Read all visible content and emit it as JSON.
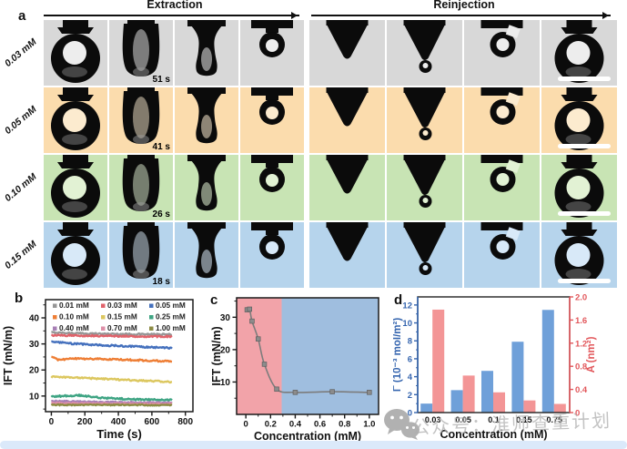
{
  "figure": {
    "background": "#ffffff",
    "bottom_strip_color": "#DBE9FA"
  },
  "panel_a": {
    "label": "a",
    "phases": [
      {
        "label": "Extraction"
      },
      {
        "label": "Reinjection"
      }
    ],
    "columns": [
      "ring",
      "ushape",
      "funnel",
      "loop",
      "cone",
      "cone_ball",
      "hook",
      "ring"
    ],
    "rows": [
      {
        "label": "0.03 mM",
        "time": "51 s",
        "bg": "#D8D8D8",
        "hole": "#EDEDED"
      },
      {
        "label": "0.05 mM",
        "time": "41 s",
        "bg": "#FBDCAD",
        "hole": "#FCEBCF"
      },
      {
        "label": "0.10 mM",
        "time": "26 s",
        "bg": "#C8E4B4",
        "hole": "#E2F2D4"
      },
      {
        "label": "0.15 mM",
        "time": "18 s",
        "bg": "#B6D4EC",
        "hole": "#D8E9F8"
      }
    ],
    "scale_bar_color": "#FFFFFF"
  },
  "panel_b": {
    "label": "b"
  },
  "panel_c": {
    "label": "c"
  },
  "panel_d": {
    "label": "d"
  },
  "watermark": {
    "icon": "wechat-icon",
    "text": "公众号：淮师查重计划"
  },
  "chart_data": [
    {
      "id": "b",
      "type": "line",
      "xlabel": "Time (s)",
      "ylabel": "IFT (mN/m)",
      "xlim": [
        -35,
        845
      ],
      "ylim": [
        4,
        47
      ],
      "xticks": [
        0,
        200,
        400,
        600,
        800
      ],
      "yticks": [
        10,
        20,
        30,
        40
      ],
      "legend_position": "top-inside",
      "series": [
        {
          "name": "0.01 mM",
          "color": "#969696",
          "noise": 0.28,
          "points": [
            [
              0,
              34.4
            ],
            [
              200,
              34.0
            ],
            [
              400,
              33.8
            ],
            [
              720,
              33.6
            ]
          ]
        },
        {
          "name": "0.03 mM",
          "color": "#E0636B",
          "noise": 0.3,
          "points": [
            [
              0,
              33.3
            ],
            [
              150,
              33.2
            ],
            [
              400,
              33.0
            ],
            [
              720,
              32.8
            ]
          ]
        },
        {
          "name": "0.05 mM",
          "color": "#4470BD",
          "noise": 0.3,
          "points": [
            [
              0,
              30.9
            ],
            [
              100,
              30.2
            ],
            [
              300,
              29.5
            ],
            [
              500,
              29.0
            ],
            [
              720,
              28.4
            ]
          ]
        },
        {
          "name": "0.10 mM",
          "color": "#EE7E35",
          "noise": 0.3,
          "points": [
            [
              0,
              25.1
            ],
            [
              40,
              23.8
            ],
            [
              120,
              24.4
            ],
            [
              300,
              24.2
            ],
            [
              500,
              23.8
            ],
            [
              720,
              23.3
            ]
          ]
        },
        {
          "name": "0.15 mM",
          "color": "#DCC75F",
          "noise": 0.3,
          "points": [
            [
              0,
              17.3
            ],
            [
              150,
              17.1
            ],
            [
              300,
              16.6
            ],
            [
              500,
              16.0
            ],
            [
              720,
              15.4
            ]
          ]
        },
        {
          "name": "0.25 mM",
          "color": "#3EA483",
          "noise": 0.3,
          "points": [
            [
              0,
              9.8
            ],
            [
              100,
              10.1
            ],
            [
              160,
              10.3
            ],
            [
              300,
              9.3
            ],
            [
              500,
              8.7
            ],
            [
              720,
              8.5
            ]
          ]
        },
        {
          "name": "0.40 mM",
          "color": "#A77FB5",
          "noise": 0.25,
          "points": [
            [
              0,
              8.1
            ],
            [
              200,
              7.8
            ],
            [
              720,
              7.4
            ]
          ]
        },
        {
          "name": "0.70 mM",
          "color": "#DE8FA8",
          "noise": 0.22,
          "points": [
            [
              0,
              7.3
            ],
            [
              400,
              7.1
            ],
            [
              720,
              7.0
            ]
          ]
        },
        {
          "name": "1.00 mM",
          "color": "#8D8C44",
          "noise": 0.22,
          "points": [
            [
              0,
              6.6
            ],
            [
              400,
              6.6
            ],
            [
              720,
              6.5
            ]
          ]
        }
      ]
    },
    {
      "id": "c",
      "type": "scatter",
      "xlabel": "Concentration (mM)",
      "ylabel": "IFT (mN/m)",
      "xlim": [
        -0.075,
        1.075
      ],
      "ylim": [
        0,
        36
      ],
      "xticks": [
        0,
        0.2,
        0.4,
        0.6,
        0.8,
        1.0
      ],
      "yticks": [
        10,
        20,
        30
      ],
      "regions": [
        {
          "from": -0.075,
          "to": 0.29,
          "color": "#F2A3A9"
        },
        {
          "from": 0.29,
          "to": 1.075,
          "color": "#9FBEDF"
        }
      ],
      "line_color": "#7C7C7C",
      "marker_color": "#8C8C8C",
      "points": [
        [
          0.01,
          32.3
        ],
        [
          0.03,
          32.5
        ],
        [
          0.05,
          28.8
        ],
        [
          0.1,
          23.3
        ],
        [
          0.15,
          15.5
        ],
        [
          0.25,
          7.8
        ],
        [
          0.4,
          6.8
        ],
        [
          0.7,
          7.0
        ],
        [
          1.0,
          6.8
        ]
      ]
    },
    {
      "id": "d",
      "type": "bar",
      "xlabel": "Concentration (mM)",
      "ylabel_left": "Γ (10⁻³ mol/m²)",
      "ylabel_right": "A (nm²)",
      "categories": [
        "0.03",
        "0.05",
        "0.1",
        "0.15",
        "0.75"
      ],
      "ylim_left": [
        0,
        12.9
      ],
      "yticks_left": [
        0,
        2,
        4,
        6,
        8,
        10,
        12
      ],
      "ylim_right": [
        0,
        2.0
      ],
      "yticks_right": [
        0,
        0.4,
        0.8,
        1.2,
        1.6,
        2.0
      ],
      "left_color": "#3565AF",
      "right_color": "#E2575B",
      "series": [
        {
          "name": "Γ",
          "axis": "left",
          "color": "#6FA0D9",
          "values": [
            1.0,
            2.5,
            4.65,
            7.9,
            11.45
          ]
        },
        {
          "name": "A",
          "axis": "right",
          "color": "#F39596",
          "values": [
            1.78,
            0.64,
            0.35,
            0.21,
            0.15
          ]
        }
      ]
    }
  ]
}
